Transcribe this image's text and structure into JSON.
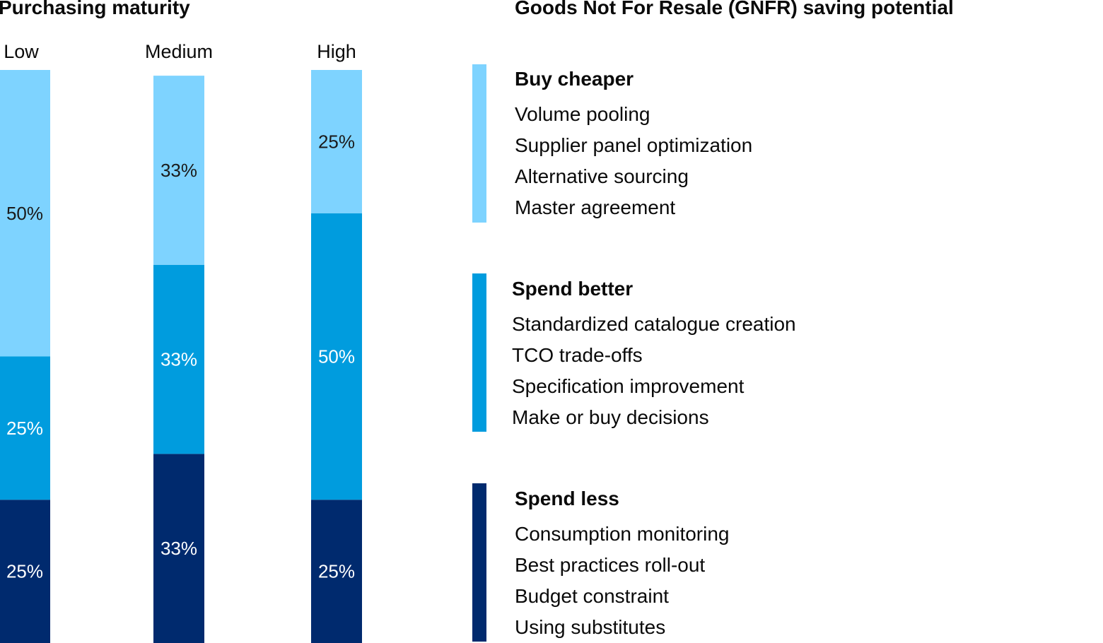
{
  "chart_data": {
    "type": "bar",
    "stacked": true,
    "percent": true,
    "title": "Purchasing maturity",
    "categories": [
      "Low",
      "Medium",
      "High"
    ],
    "series": [
      {
        "name": "Spend less",
        "color": "#002A6E",
        "values": [
          25,
          33,
          25
        ],
        "labels": [
          "25%",
          "33%",
          "25%"
        ]
      },
      {
        "name": "Spend better",
        "color": "#009CDE",
        "values": [
          25,
          33,
          50
        ],
        "labels": [
          "25%",
          "33%",
          "50%"
        ]
      },
      {
        "name": "Buy cheaper",
        "color": "#7ED3FF",
        "values": [
          50,
          33,
          25
        ],
        "labels": [
          "50%",
          "33%",
          "25%"
        ]
      }
    ],
    "ylim": [
      0,
      100
    ]
  },
  "legend": {
    "title": "Goods Not For Resale (GNFR) saving potential",
    "groups": [
      {
        "title": "Buy cheaper",
        "color": "#7ED3FF",
        "items": [
          "Volume pooling",
          "Supplier panel optimization",
          "Alternative sourcing",
          "Master agreement"
        ]
      },
      {
        "title": "Spend better",
        "color": "#009CDE",
        "items": [
          "Standardized catalogue creation",
          "TCO trade-offs",
          "Specification improvement",
          "Make or buy decisions"
        ]
      },
      {
        "title": "Spend less",
        "color": "#002A6E",
        "items": [
          "Consumption monitoring",
          "Best practices roll-out",
          "Budget constraint",
          "Using substitutes"
        ]
      }
    ]
  }
}
